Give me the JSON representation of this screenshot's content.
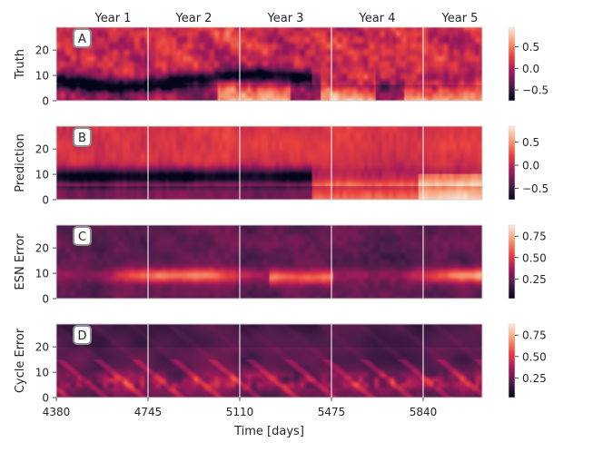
{
  "chart_data": {
    "type": "heatmap",
    "xlabel": "Time [days]",
    "x_ticks": [
      4380,
      4745,
      5110,
      5475,
      5840
    ],
    "xlim": [
      4380,
      6075
    ],
    "year_boundaries": [
      4745,
      5110,
      5475,
      5840
    ],
    "year_labels": [
      "Year 1",
      "Year 2",
      "Year 3",
      "Year 4",
      "Year 5"
    ],
    "colormap": [
      "#03051a",
      "#4c1d4b",
      "#a11a5b",
      "#e83f3f",
      "#f69c73",
      "#faebdd"
    ],
    "panels": [
      {
        "letter": "A",
        "ylabel": "Truth",
        "y_ticks": [
          0,
          10,
          20
        ],
        "ylim": [
          0,
          29
        ],
        "colorbar": {
          "range": [
            -0.75,
            0.95
          ],
          "ticks": [
            -0.5,
            0.0,
            0.5
          ],
          "tick_labels": [
            "−0.5",
            "0.0",
            "0.5"
          ]
        }
      },
      {
        "letter": "B",
        "ylabel": "Prediction",
        "y_ticks": [
          0,
          10,
          20
        ],
        "ylim": [
          0,
          29
        ],
        "colorbar": {
          "range": [
            -0.75,
            0.85
          ],
          "ticks": [
            -0.5,
            0.0,
            0.5
          ],
          "tick_labels": [
            "−0.5",
            "0.0",
            "0.5"
          ]
        }
      },
      {
        "letter": "C",
        "ylabel": "ESN Error",
        "y_ticks": [
          0,
          10,
          20
        ],
        "ylim": [
          0,
          29
        ],
        "colorbar": {
          "range": [
            0.02,
            0.88
          ],
          "ticks": [
            0.25,
            0.5,
            0.75
          ],
          "tick_labels": [
            "0.25",
            "0.50",
            "0.75"
          ]
        }
      },
      {
        "letter": "D",
        "ylabel": "Cycle Error",
        "y_ticks": [
          0,
          10,
          20
        ],
        "ylim": [
          0,
          29
        ],
        "colorbar": {
          "range": [
            0.02,
            0.88
          ],
          "ticks": [
            0.25,
            0.5,
            0.75
          ],
          "tick_labels": [
            "0.25",
            "0.50",
            "0.75"
          ]
        }
      }
    ]
  }
}
